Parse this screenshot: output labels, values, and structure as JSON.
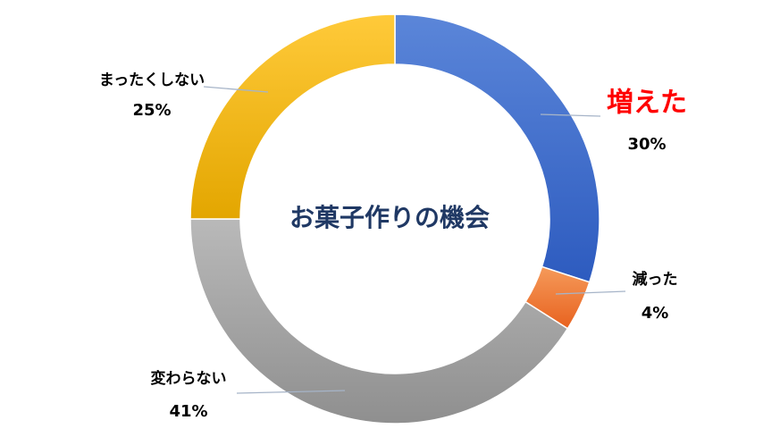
{
  "chart_data": {
    "type": "pie",
    "variant": "donut",
    "title": "お菓子作りの機会",
    "start_angle": "12 o'clock",
    "direction": "clockwise",
    "legend": "none",
    "slices": [
      {
        "label": "増えた",
        "value": 30,
        "value_label": "30%",
        "color_light": "#5b86d9",
        "color_dark": "#2d5bbf",
        "label_color": "#ff0000",
        "label_emphasis": "large-bold"
      },
      {
        "label": "減った",
        "value": 4,
        "value_label": "4%",
        "color_light": "#f59a5a",
        "color_dark": "#e8621f",
        "label_color": "#000000"
      },
      {
        "label": "変わらない",
        "value": 41,
        "value_label": "41%",
        "color_light": "#b9b9b9",
        "color_dark": "#8f8f8f",
        "label_color": "#000000"
      },
      {
        "label": "まったくしない",
        "value": 25,
        "value_label": "25%",
        "color_light": "#ffca3a",
        "color_dark": "#e3a600",
        "label_color": "#000000"
      }
    ],
    "title_color": "#1f3864",
    "leader_line_color": "#a6b4c8"
  }
}
